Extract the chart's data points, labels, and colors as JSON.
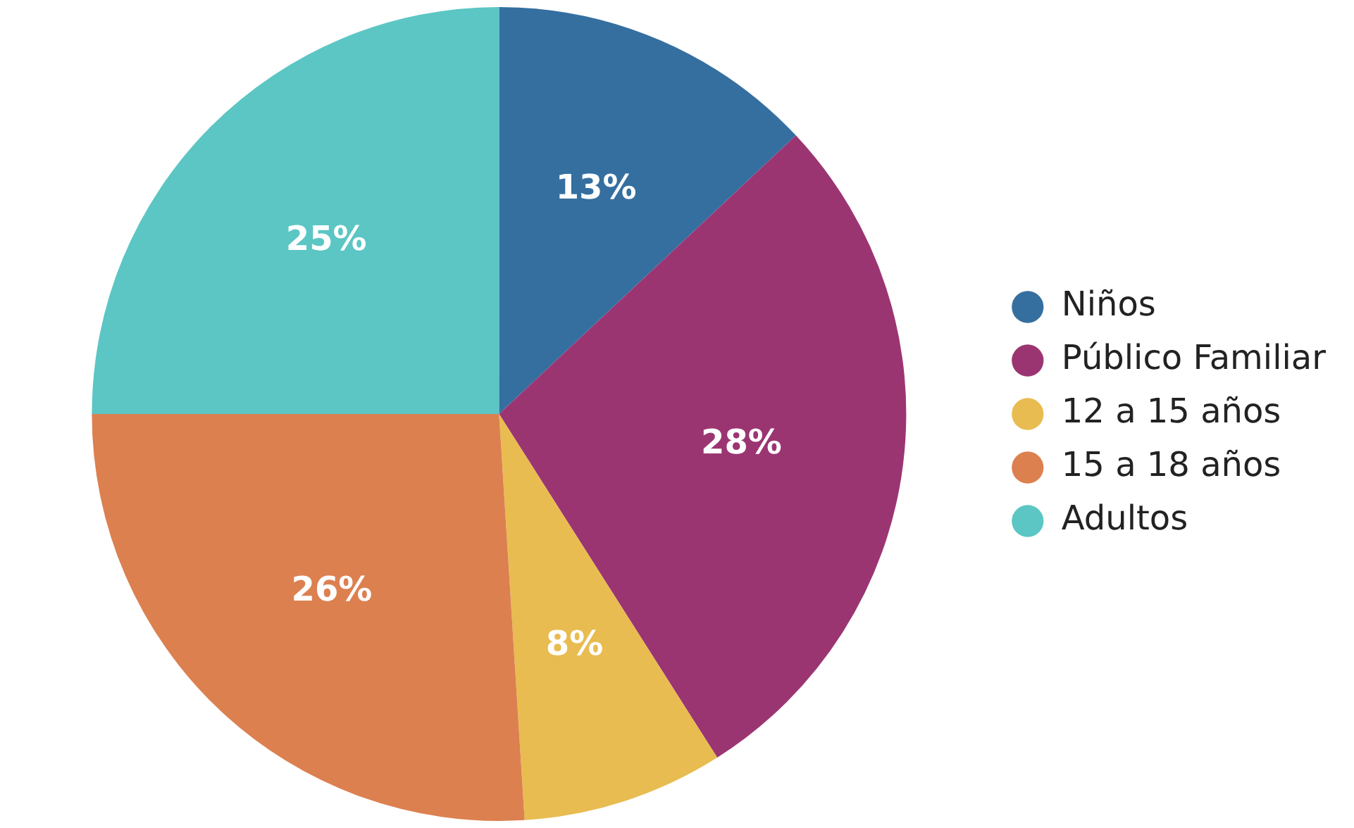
{
  "chart_data": {
    "type": "pie",
    "categories": [
      "Niños",
      "Público Familiar",
      "12 a 15 años",
      "15 a 18 años",
      "Adultos"
    ],
    "values": [
      13,
      28,
      8,
      26,
      25
    ],
    "colors": [
      "#356fa0",
      "#9b3572",
      "#e8bc50",
      "#dc8050",
      "#5bc6c4"
    ],
    "value_labels": [
      "13%",
      "28%",
      "8%",
      "26%",
      "25%"
    ],
    "legend": "right"
  }
}
